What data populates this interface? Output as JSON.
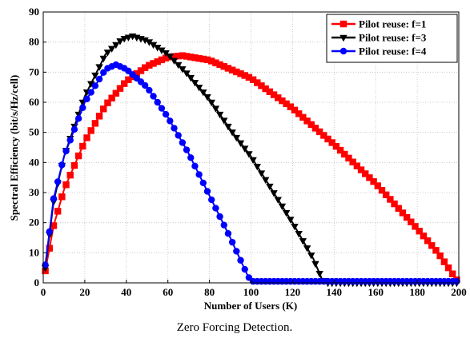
{
  "chart_data": {
    "type": "line",
    "caption": "Zero Forcing Detection.",
    "xlabel": "Number of Users (K)",
    "ylabel": "Spectral Efficiency (bit/s/Hz/cell)",
    "xlim": [
      0,
      200
    ],
    "ylim": [
      0,
      90
    ],
    "xticks": [
      0,
      20,
      40,
      60,
      80,
      100,
      120,
      140,
      160,
      180,
      200
    ],
    "yticks": [
      0,
      10,
      20,
      30,
      40,
      50,
      60,
      70,
      80,
      90
    ],
    "grid": true,
    "legend_position": "top-right",
    "series": [
      {
        "name": "Pilot reuse: f=1",
        "color": "#ff0000",
        "marker": "square",
        "x": [
          1,
          5,
          10,
          20,
          30,
          40,
          50,
          60,
          67,
          80,
          100,
          120,
          140,
          160,
          180,
          190,
          199
        ],
        "y": [
          4,
          19,
          31,
          47,
          59,
          67,
          72,
          75,
          75.5,
          74,
          68,
          58,
          46,
          33,
          18,
          10,
          1
        ]
      },
      {
        "name": "Pilot reuse: f=3",
        "color": "#000000",
        "marker": "triangle-down",
        "x": [
          1,
          3,
          5,
          10,
          20,
          30,
          38,
          43,
          50,
          60,
          70,
          80,
          90,
          100,
          110,
          120,
          130,
          134,
          136,
          200
        ],
        "y": [
          5,
          16,
          27,
          42,
          62,
          76,
          81,
          82,
          80.5,
          76,
          69,
          61,
          51,
          42,
          31,
          20,
          8,
          1.5,
          0,
          0
        ]
      },
      {
        "name": "Pilot reuse: f=4",
        "color": "#0000ff",
        "marker": "circle",
        "x": [
          1,
          3,
          5,
          10,
          20,
          30,
          35,
          40,
          50,
          60,
          70,
          80,
          90,
          98,
          100,
          200
        ],
        "y": [
          6,
          17,
          28,
          42,
          60,
          71,
          72.5,
          71,
          65,
          55,
          43,
          29,
          15,
          3,
          0.5,
          0.5
        ]
      }
    ]
  }
}
